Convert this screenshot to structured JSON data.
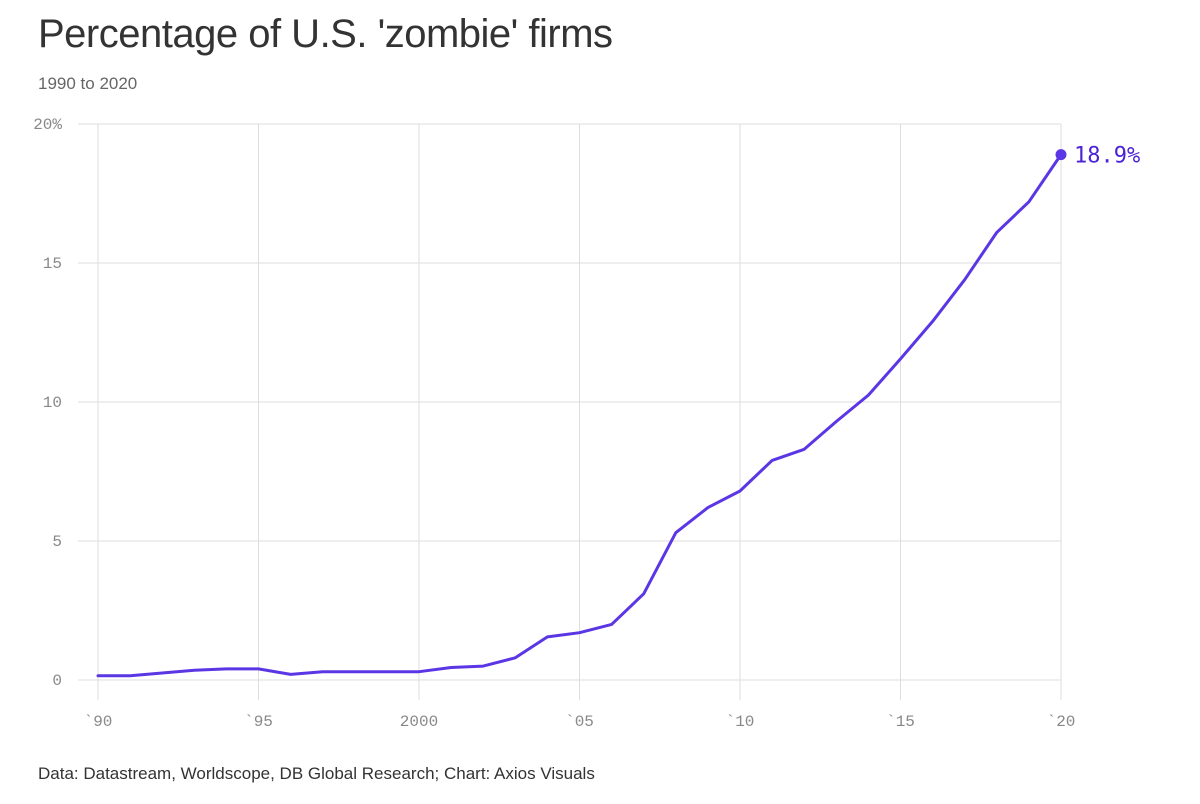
{
  "title": "Percentage of U.S. 'zombie' firms",
  "subtitle": "1990 to 2020",
  "footer": "Data: Datastream, Worldscope, DB Global Research; Chart: Axios Visuals",
  "colors": {
    "line": "#5b36e5",
    "end_label": "#4b22d6"
  },
  "chart_data": {
    "type": "line",
    "title": "Percentage of U.S. 'zombie' firms",
    "subtitle": "1990 to 2020",
    "xlabel": "",
    "ylabel": "",
    "xlim": [
      1990,
      2020
    ],
    "ylim": [
      0,
      20
    ],
    "grid": true,
    "x_ticks": [
      {
        "value": 1990,
        "label": "`90"
      },
      {
        "value": 1995,
        "label": "`95"
      },
      {
        "value": 2000,
        "label": "2000"
      },
      {
        "value": 2005,
        "label": "`05"
      },
      {
        "value": 2010,
        "label": "`10"
      },
      {
        "value": 2015,
        "label": "`15"
      },
      {
        "value": 2020,
        "label": "`20"
      }
    ],
    "y_ticks": [
      {
        "value": 0,
        "label": "0"
      },
      {
        "value": 5,
        "label": "5"
      },
      {
        "value": 10,
        "label": "10"
      },
      {
        "value": 15,
        "label": "15"
      },
      {
        "value": 20,
        "label": "20%"
      }
    ],
    "series": [
      {
        "name": "Zombie firms (%)",
        "x": [
          1990,
          1991,
          1992,
          1993,
          1994,
          1995,
          1996,
          1997,
          1998,
          1999,
          2000,
          2001,
          2002,
          2003,
          2004,
          2005,
          2006,
          2007,
          2008,
          2009,
          2010,
          2011,
          2012,
          2013,
          2014,
          2015,
          2016,
          2017,
          2018,
          2019,
          2020
        ],
        "values": [
          0.15,
          0.15,
          0.25,
          0.35,
          0.4,
          0.4,
          0.2,
          0.3,
          0.3,
          0.3,
          0.3,
          0.45,
          0.5,
          0.8,
          1.55,
          1.7,
          2.0,
          3.1,
          5.3,
          6.2,
          6.8,
          7.9,
          8.3,
          9.3,
          10.25,
          11.55,
          12.9,
          14.4,
          16.1,
          17.2,
          18.9
        ]
      }
    ],
    "annotations": [
      {
        "x": 2020,
        "y": 18.9,
        "label": "18.9%"
      }
    ]
  }
}
